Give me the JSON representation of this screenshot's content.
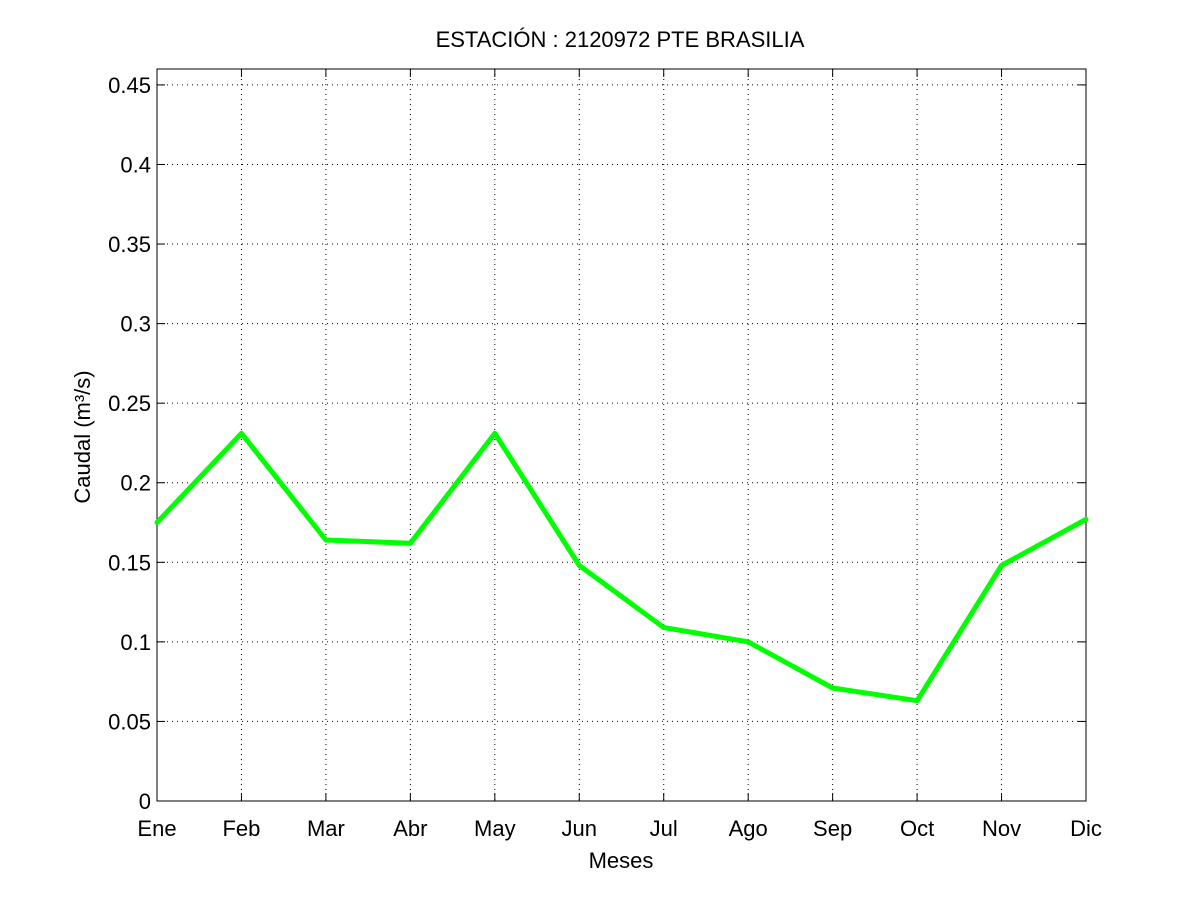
{
  "chart_data": {
    "type": "line",
    "title": "ESTACIÓN :  2120972  PTE BRASILIA",
    "xlabel": "Meses",
    "ylabel": "Caudal (m³/s)",
    "categories": [
      "Ene",
      "Feb",
      "Mar",
      "Abr",
      "May",
      "Jun",
      "Jul",
      "Ago",
      "Sep",
      "Oct",
      "Nov",
      "Dic"
    ],
    "series": [
      {
        "values": [
          0.175,
          0.231,
          0.164,
          0.162,
          0.231,
          0.148,
          0.109,
          0.1,
          0.071,
          0.063,
          0.148,
          0.177
        ],
        "color": "#00ff00"
      }
    ],
    "ylim": [
      0,
      0.46
    ],
    "yticks": [
      0,
      0.05,
      0.1,
      0.15,
      0.2,
      0.25,
      0.3,
      0.35,
      0.4,
      0.45
    ],
    "ytick_labels": [
      "0",
      "0.05",
      "0.1",
      "0.15",
      "0.2",
      "0.25",
      "0.3",
      "0.35",
      "0.4",
      "0.45"
    ],
    "grid": true,
    "legend": "none"
  }
}
